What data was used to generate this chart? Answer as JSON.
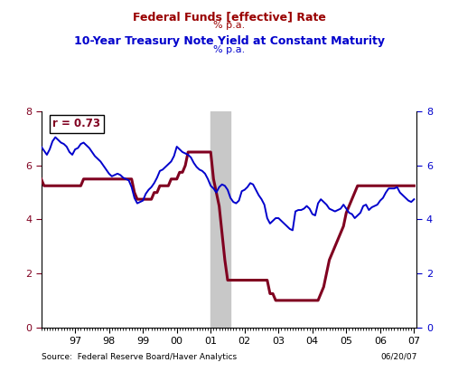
{
  "title_line1": "Federal Funds [effective] Rate",
  "title_line2": "% p.a.",
  "title2_line1": "10-Year Treasury Note Yield at Constant Maturity",
  "title2_line2": "% p.a.",
  "title_color": "#990000",
  "title2_color": "#0000CC",
  "source_text": "Source:  Federal Reserve Board/Haver Analytics",
  "date_text": "06/20/07",
  "correlation_text": "r = 0.73",
  "ylim": [
    0,
    8
  ],
  "yticks": [
    0,
    2,
    4,
    6,
    8
  ],
  "shade_start": 2001.0,
  "shade_end": 2001.58,
  "background_color": "#ffffff",
  "fed_funds_color": "#800020",
  "treasury_color": "#0000CC",
  "xmin": 1996.0,
  "xmax": 2007.08,
  "xtick_positions": [
    1997,
    1998,
    1999,
    2000,
    2001,
    2002,
    2003,
    2004,
    2005,
    2006,
    2007
  ],
  "xtick_labels": [
    "97",
    "98",
    "99",
    "00",
    "01",
    "02",
    "03",
    "04",
    "05",
    "06",
    "07"
  ],
  "fed_funds_data": {
    "x": [
      1996.0,
      1996.083,
      1996.167,
      1996.25,
      1996.333,
      1996.417,
      1996.5,
      1996.583,
      1996.667,
      1996.75,
      1996.833,
      1996.917,
      1997.0,
      1997.083,
      1997.167,
      1997.25,
      1997.333,
      1997.417,
      1997.5,
      1997.583,
      1997.667,
      1997.75,
      1997.833,
      1997.917,
      1998.0,
      1998.083,
      1998.167,
      1998.25,
      1998.333,
      1998.417,
      1998.5,
      1998.583,
      1998.667,
      1998.75,
      1998.833,
      1998.917,
      1999.0,
      1999.083,
      1999.167,
      1999.25,
      1999.333,
      1999.417,
      1999.5,
      1999.583,
      1999.667,
      1999.75,
      1999.833,
      1999.917,
      2000.0,
      2000.083,
      2000.167,
      2000.25,
      2000.333,
      2000.417,
      2000.5,
      2000.583,
      2000.667,
      2000.75,
      2000.833,
      2000.917,
      2001.0,
      2001.083,
      2001.167,
      2001.25,
      2001.333,
      2001.417,
      2001.5,
      2001.583,
      2001.667,
      2001.75,
      2001.833,
      2001.917,
      2002.0,
      2002.083,
      2002.167,
      2002.25,
      2002.333,
      2002.417,
      2002.5,
      2002.583,
      2002.667,
      2002.75,
      2002.833,
      2002.917,
      2003.0,
      2003.083,
      2003.167,
      2003.25,
      2003.333,
      2003.417,
      2003.5,
      2003.583,
      2003.667,
      2003.75,
      2003.833,
      2003.917,
      2004.0,
      2004.083,
      2004.167,
      2004.25,
      2004.333,
      2004.417,
      2004.5,
      2004.583,
      2004.667,
      2004.75,
      2004.833,
      2004.917,
      2005.0,
      2005.083,
      2005.167,
      2005.25,
      2005.333,
      2005.417,
      2005.5,
      2005.583,
      2005.667,
      2005.75,
      2005.833,
      2005.917,
      2006.0,
      2006.083,
      2006.167,
      2006.25,
      2006.333,
      2006.417,
      2006.5,
      2006.583,
      2006.667,
      2006.75,
      2006.833,
      2006.917,
      2007.0
    ],
    "y": [
      5.5,
      5.25,
      5.25,
      5.25,
      5.25,
      5.25,
      5.25,
      5.25,
      5.25,
      5.25,
      5.25,
      5.25,
      5.25,
      5.25,
      5.25,
      5.5,
      5.5,
      5.5,
      5.5,
      5.5,
      5.5,
      5.5,
      5.5,
      5.5,
      5.5,
      5.5,
      5.5,
      5.5,
      5.5,
      5.5,
      5.5,
      5.5,
      5.5,
      5.0,
      4.75,
      4.75,
      4.75,
      4.75,
      4.75,
      4.75,
      5.0,
      5.0,
      5.25,
      5.25,
      5.25,
      5.25,
      5.5,
      5.5,
      5.5,
      5.75,
      5.75,
      6.0,
      6.5,
      6.5,
      6.5,
      6.5,
      6.5,
      6.5,
      6.5,
      6.5,
      6.5,
      5.5,
      5.0,
      4.5,
      3.5,
      2.5,
      1.75,
      1.75,
      1.75,
      1.75,
      1.75,
      1.75,
      1.75,
      1.75,
      1.75,
      1.75,
      1.75,
      1.75,
      1.75,
      1.75,
      1.75,
      1.25,
      1.25,
      1.0,
      1.0,
      1.0,
      1.0,
      1.0,
      1.0,
      1.0,
      1.0,
      1.0,
      1.0,
      1.0,
      1.0,
      1.0,
      1.0,
      1.0,
      1.0,
      1.25,
      1.5,
      2.0,
      2.5,
      2.75,
      3.0,
      3.25,
      3.5,
      3.75,
      4.25,
      4.5,
      4.75,
      5.0,
      5.25,
      5.25,
      5.25,
      5.25,
      5.25,
      5.25,
      5.25,
      5.25,
      5.25,
      5.25,
      5.25,
      5.25,
      5.25,
      5.25,
      5.25,
      5.25,
      5.25,
      5.25,
      5.25,
      5.25,
      5.25
    ]
  },
  "treasury_data": {
    "x": [
      1996.0,
      1996.083,
      1996.167,
      1996.25,
      1996.333,
      1996.417,
      1996.5,
      1996.583,
      1996.667,
      1996.75,
      1996.833,
      1996.917,
      1997.0,
      1997.083,
      1997.167,
      1997.25,
      1997.333,
      1997.417,
      1997.5,
      1997.583,
      1997.667,
      1997.75,
      1997.833,
      1997.917,
      1998.0,
      1998.083,
      1998.167,
      1998.25,
      1998.333,
      1998.417,
      1998.5,
      1998.583,
      1998.667,
      1998.75,
      1998.833,
      1998.917,
      1999.0,
      1999.083,
      1999.167,
      1999.25,
      1999.333,
      1999.417,
      1999.5,
      1999.583,
      1999.667,
      1999.75,
      1999.833,
      1999.917,
      2000.0,
      2000.083,
      2000.167,
      2000.25,
      2000.333,
      2000.417,
      2000.5,
      2000.583,
      2000.667,
      2000.75,
      2000.833,
      2000.917,
      2001.0,
      2001.083,
      2001.167,
      2001.25,
      2001.333,
      2001.417,
      2001.5,
      2001.583,
      2001.667,
      2001.75,
      2001.833,
      2001.917,
      2002.0,
      2002.083,
      2002.167,
      2002.25,
      2002.333,
      2002.417,
      2002.5,
      2002.583,
      2002.667,
      2002.75,
      2002.833,
      2002.917,
      2003.0,
      2003.083,
      2003.167,
      2003.25,
      2003.333,
      2003.417,
      2003.5,
      2003.583,
      2003.667,
      2003.75,
      2003.833,
      2003.917,
      2004.0,
      2004.083,
      2004.167,
      2004.25,
      2004.333,
      2004.417,
      2004.5,
      2004.583,
      2004.667,
      2004.75,
      2004.833,
      2004.917,
      2005.0,
      2005.083,
      2005.167,
      2005.25,
      2005.333,
      2005.417,
      2005.5,
      2005.583,
      2005.667,
      2005.75,
      2005.833,
      2005.917,
      2006.0,
      2006.083,
      2006.167,
      2006.25,
      2006.333,
      2006.417,
      2006.5,
      2006.583,
      2006.667,
      2006.75,
      2006.833,
      2006.917,
      2007.0
    ],
    "y": [
      6.7,
      6.55,
      6.4,
      6.6,
      6.9,
      7.05,
      6.95,
      6.85,
      6.8,
      6.7,
      6.5,
      6.4,
      6.6,
      6.65,
      6.8,
      6.85,
      6.75,
      6.65,
      6.5,
      6.35,
      6.25,
      6.15,
      6.0,
      5.85,
      5.7,
      5.6,
      5.65,
      5.7,
      5.65,
      5.55,
      5.5,
      5.45,
      5.2,
      4.8,
      4.6,
      4.65,
      4.7,
      4.95,
      5.1,
      5.2,
      5.35,
      5.55,
      5.8,
      5.85,
      5.95,
      6.05,
      6.15,
      6.35,
      6.7,
      6.6,
      6.5,
      6.45,
      6.4,
      6.3,
      6.1,
      5.95,
      5.85,
      5.8,
      5.7,
      5.5,
      5.25,
      5.15,
      5.0,
      5.2,
      5.3,
      5.25,
      5.1,
      4.8,
      4.65,
      4.6,
      4.7,
      5.05,
      5.1,
      5.2,
      5.35,
      5.3,
      5.1,
      4.9,
      4.75,
      4.55,
      4.05,
      3.85,
      3.95,
      4.05,
      4.05,
      3.95,
      3.85,
      3.75,
      3.65,
      3.6,
      4.3,
      4.35,
      4.35,
      4.4,
      4.5,
      4.4,
      4.2,
      4.15,
      4.6,
      4.75,
      4.65,
      4.55,
      4.4,
      4.35,
      4.3,
      4.35,
      4.4,
      4.55,
      4.4,
      4.25,
      4.2,
      4.05,
      4.15,
      4.25,
      4.5,
      4.55,
      4.35,
      4.45,
      4.5,
      4.55,
      4.7,
      4.8,
      5.0,
      5.15,
      5.15,
      5.15,
      5.2,
      5.0,
      4.9,
      4.8,
      4.7,
      4.65,
      4.75
    ]
  }
}
